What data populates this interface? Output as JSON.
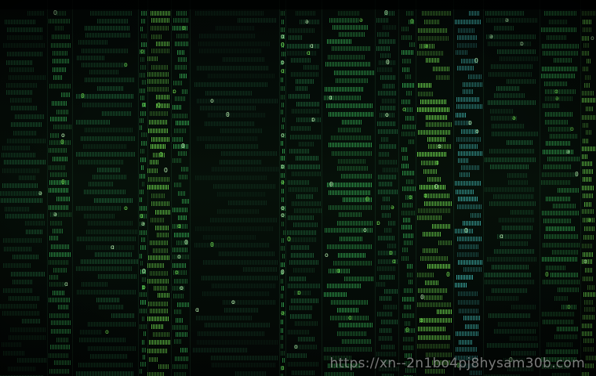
{
  "image": {
    "kind": "matrix-style data screen",
    "colors": {
      "background": "#030806",
      "bright_green": "#6fdc4f",
      "mid_green": "#2f9a4a",
      "dim_green": "#1c5c34",
      "teal": "#3aa6a0"
    }
  },
  "watermark": {
    "text": "https://xn--2n1bo4pj8hysam30b.com"
  }
}
